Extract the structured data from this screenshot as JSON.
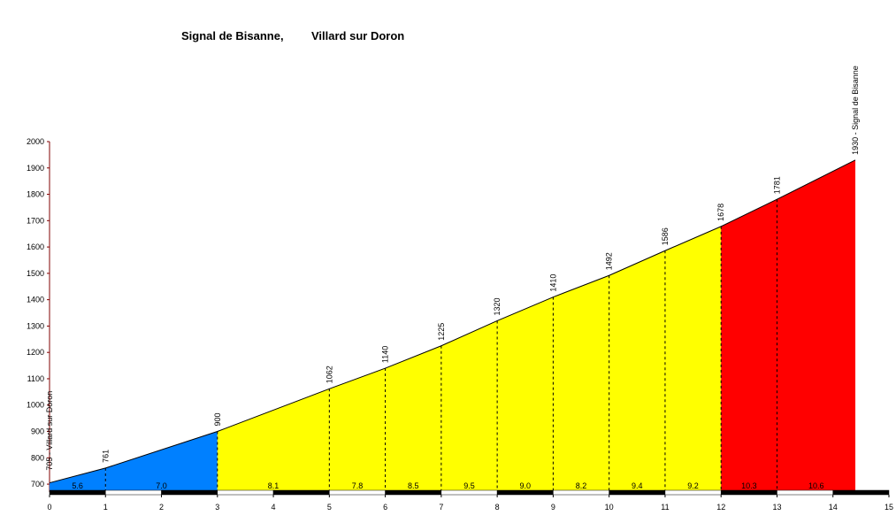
{
  "chart_data": {
    "type": "profile",
    "title": "Signal de Bisanne,",
    "subtitle": "Villard sur Doron",
    "x": [
      0,
      1,
      3,
      5,
      6,
      7,
      8,
      9,
      10,
      11,
      12,
      13,
      14.4
    ],
    "values": [
      705,
      761,
      900,
      1062,
      1140,
      1225,
      1320,
      1410,
      1492,
      1586,
      1678,
      1781,
      1930
    ],
    "value_labels": [
      "705 - Villard sur Doron",
      "761",
      "900",
      "1062",
      "1140",
      "1225",
      "1320",
      "1410",
      "1492",
      "1586",
      "1678",
      "1781",
      "1930 - Signal de Bisanne"
    ],
    "gradients": [
      5.6,
      7.0,
      8.1,
      7.8,
      8.5,
      9.5,
      9.0,
      8.2,
      9.4,
      9.2,
      10.3,
      10.6
    ],
    "gradient_labels": [
      "5.6",
      "7.0",
      "8.1",
      "7.8",
      "8.5",
      "9.5",
      "9.0",
      "8.2",
      "9.4",
      "9.2",
      "10.3",
      "10.6"
    ],
    "segment_colors": [
      "#0080ff",
      "#0080ff",
      "#ffff00",
      "#ffff00",
      "#ffff00",
      "#ffff00",
      "#ffff00",
      "#ffff00",
      "#ffff00",
      "#ffff00",
      "#ff0000",
      "#ff0000"
    ],
    "xlim": [
      0,
      15
    ],
    "xticks": [
      0,
      1,
      2,
      3,
      4,
      5,
      6,
      7,
      8,
      9,
      10,
      11,
      12,
      13,
      14,
      15
    ],
    "ylim": [
      670,
      2000
    ],
    "yticks": [
      700,
      800,
      900,
      1000,
      1100,
      1200,
      1300,
      1400,
      1500,
      1600,
      1700,
      1800,
      1900,
      2000
    ]
  }
}
